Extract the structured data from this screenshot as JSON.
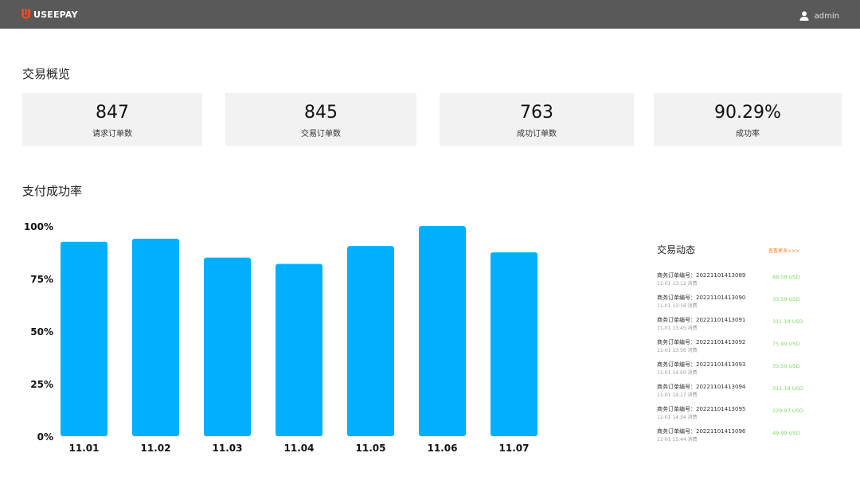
{
  "header": {
    "brand": "USEEPAY",
    "user": "admin",
    "brand_color": "#e94e1b",
    "bar_color": "#595959",
    "logo_icon": "useepay-logo",
    "user_icon": "user-icon"
  },
  "overview": {
    "title": "交易概览",
    "cards": [
      {
        "value": "847",
        "label": "请求订单数"
      },
      {
        "value": "845",
        "label": "交易订单数"
      },
      {
        "value": "763",
        "label": "成功订单数"
      },
      {
        "value": "90.29%",
        "label": "成功率"
      }
    ]
  },
  "success_rate": {
    "title": "支付成功率"
  },
  "chart_data": {
    "type": "bar",
    "categories": [
      "11.01",
      "11.02",
      "11.03",
      "11.04",
      "11.05",
      "11.06",
      "11.07"
    ],
    "values": [
      92.5,
      94,
      85,
      82,
      90.5,
      100,
      87.5
    ],
    "yticks": [
      "0%",
      "25%",
      "50%",
      "75%",
      "100%"
    ],
    "ylim": [
      0,
      100
    ],
    "bar_color": "#00b0ff",
    "grid": false
  },
  "feed": {
    "title": "交易动态",
    "more": "查看更多>>>",
    "amount_color": "#7ddc62",
    "items": [
      {
        "order": "商务订单编号：20221101413089",
        "time": "11-01 13:12  消费",
        "amount": "88.58 USD"
      },
      {
        "order": "商务订单编号：20221101413090",
        "time": "11-01 13:16  消费",
        "amount": "33.59 USD"
      },
      {
        "order": "商务订单编号：20221101413091",
        "time": "11-01 13:45  消费",
        "amount": "311.18 USD"
      },
      {
        "order": "商务订单编号：20221101413092",
        "time": "11-01 13:56  消费",
        "amount": "75.99 USD"
      },
      {
        "order": "商务订单编号：20221101413093",
        "time": "11-01 14:00  消费",
        "amount": "33.59 USD"
      },
      {
        "order": "商务订单编号：20221101413094",
        "time": "11-01 14:17  消费",
        "amount": "311.18 USD"
      },
      {
        "order": "商务订单编号：20221101413095",
        "time": "11-01 14:34  消费",
        "amount": "229.97 USD"
      },
      {
        "order": "商务订单编号：20221101413096",
        "time": "11-01 15:44  消费",
        "amount": "49.99 USD"
      }
    ]
  }
}
